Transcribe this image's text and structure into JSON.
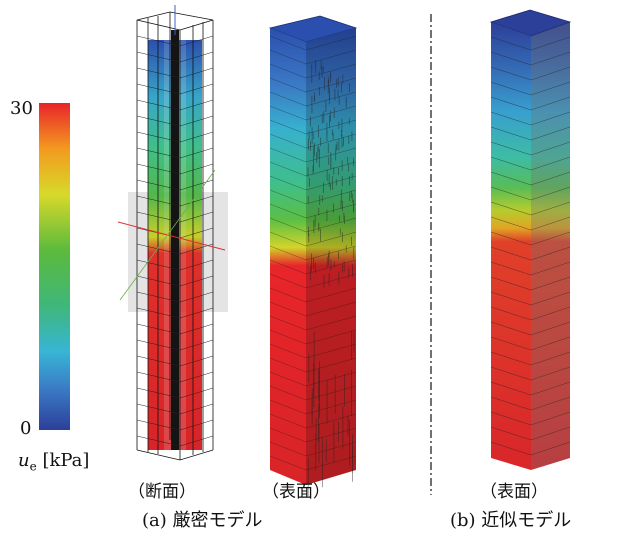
{
  "legend": {
    "max_label": "30",
    "min_label": "0",
    "unit_symbol": "u",
    "unit_subscript": "e",
    "unit_text": "[kPa]",
    "colors": [
      "#e8252a",
      "#f39a1f",
      "#d7d92a",
      "#5cba3c",
      "#3fb77a",
      "#37b5d5",
      "#3a78c4",
      "#2c3f99"
    ]
  },
  "panels": {
    "a1_label": "（断面）",
    "a2_label": "（表面）",
    "b_label": "（表面）"
  },
  "captions": {
    "a": "(a)  厳密モデル",
    "b": "(b)  近似モデル"
  }
}
